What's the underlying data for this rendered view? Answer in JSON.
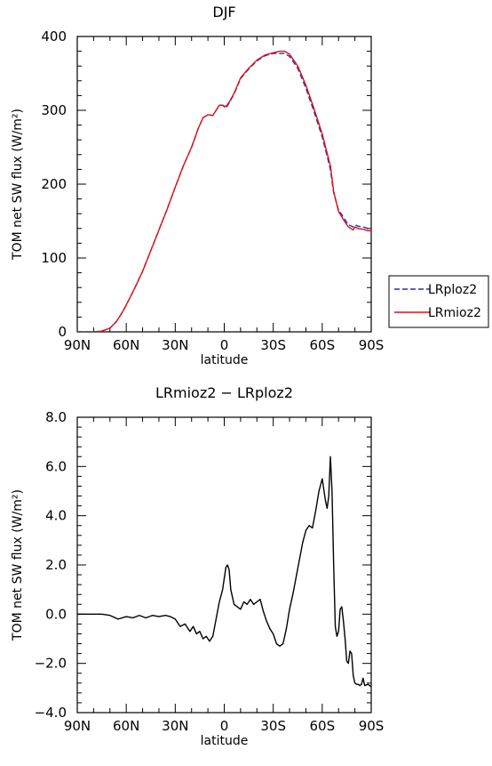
{
  "chart_data": [
    {
      "type": "line",
      "title": "DJF",
      "xlabel": "latitude",
      "ylabel": "TOM net SW flux (W/m²)",
      "x_ticks": [
        "90N",
        "60N",
        "30N",
        "0",
        "30S",
        "60S",
        "90S"
      ],
      "x_tick_values": [
        -90,
        -60,
        -30,
        0,
        30,
        60,
        90
      ],
      "y_ticks": [
        "0",
        "100",
        "200",
        "300",
        "400"
      ],
      "xlim": [
        -90,
        90
      ],
      "ylim": [
        0,
        400
      ],
      "legend_position": "right",
      "series": [
        {
          "name": "LRploz2",
          "color": "#1f2fbf",
          "dash": "dashed",
          "x": [
            -90,
            -80,
            -75,
            -70,
            -66,
            -62,
            -58,
            -54,
            -50,
            -45,
            -40,
            -35,
            -30,
            -25,
            -20,
            -16,
            -13,
            -10,
            -7,
            -5,
            -3,
            -1,
            1,
            3,
            6,
            10,
            15,
            20,
            25,
            30,
            34,
            37,
            40,
            45,
            50,
            55,
            60,
            63,
            65,
            67,
            70,
            73,
            76,
            79,
            80,
            82,
            85,
            88,
            90
          ],
          "y": [
            0,
            0,
            1,
            5,
            14,
            28,
            45,
            63,
            82,
            110,
            138,
            166,
            196,
            225,
            250,
            275,
            290,
            294,
            293,
            300,
            307,
            307,
            303,
            310,
            322,
            343,
            356,
            367,
            374,
            377,
            377,
            377,
            373,
            357,
            330,
            298,
            264,
            238,
            220,
            188,
            165,
            155,
            145,
            142,
            145,
            143,
            142,
            140,
            140
          ]
        },
        {
          "name": "LRmioz2",
          "color": "#e01010",
          "dash": "solid",
          "x": [
            -90,
            -80,
            -75,
            -70,
            -66,
            -62,
            -58,
            -54,
            -50,
            -45,
            -40,
            -35,
            -30,
            -25,
            -20,
            -16,
            -13,
            -10,
            -7,
            -5,
            -3,
            -1,
            1,
            3,
            6,
            10,
            15,
            20,
            25,
            30,
            34,
            37,
            40,
            45,
            50,
            55,
            60,
            63,
            65,
            67,
            70,
            73,
            76,
            79,
            80,
            82,
            85,
            88,
            90
          ],
          "y": [
            0,
            0,
            1,
            5,
            14,
            28,
            45,
            63,
            82,
            110,
            138,
            166,
            196,
            225,
            250,
            275,
            290,
            294,
            293,
            300,
            307,
            307,
            305,
            311,
            323,
            344,
            357,
            368,
            375,
            378,
            380,
            380,
            376,
            360,
            334,
            302,
            268,
            242,
            225,
            190,
            163,
            152,
            142,
            138,
            142,
            140,
            139,
            137,
            137
          ]
        }
      ]
    },
    {
      "type": "line",
      "title": "LRmioz2 − LRploz2",
      "xlabel": "latitude",
      "ylabel": "TOM net SW flux (W/m²)",
      "x_ticks": [
        "90N",
        "60N",
        "30N",
        "0",
        "30S",
        "60S",
        "90S"
      ],
      "x_tick_values": [
        -90,
        -60,
        -30,
        0,
        30,
        60,
        90
      ],
      "y_ticks": [
        "−4.0",
        "−2.0",
        "0.0",
        "2.0",
        "4.0",
        "6.0",
        "8.0"
      ],
      "xlim": [
        -90,
        90
      ],
      "ylim": [
        -4,
        8
      ],
      "series": [
        {
          "name": "",
          "color": "#000000",
          "dash": "solid",
          "x": [
            -90,
            -75,
            -70,
            -65,
            -60,
            -56,
            -52,
            -48,
            -44,
            -40,
            -36,
            -33,
            -30,
            -27,
            -24,
            -21,
            -19,
            -17,
            -15,
            -13,
            -11,
            -9,
            -7,
            -5,
            -3,
            -1,
            1,
            2,
            3,
            4,
            6,
            8,
            10,
            12,
            14,
            16,
            18,
            20,
            22,
            24,
            26,
            28,
            30,
            32,
            34,
            36,
            38,
            40,
            42,
            44,
            46,
            48,
            50,
            52,
            54,
            56,
            58,
            60,
            62,
            63,
            64,
            65,
            66,
            67,
            68,
            69,
            70,
            71,
            72,
            73,
            74,
            75,
            76,
            77,
            78,
            79,
            80,
            81,
            82,
            83,
            84,
            85,
            86,
            88,
            90
          ],
          "y": [
            0,
            0,
            -0.05,
            -0.2,
            -0.1,
            -0.15,
            -0.05,
            -0.15,
            -0.05,
            -0.1,
            -0.05,
            -0.1,
            -0.2,
            -0.5,
            -0.4,
            -0.7,
            -0.5,
            -0.8,
            -0.7,
            -1.0,
            -0.9,
            -1.1,
            -0.9,
            -0.2,
            0.5,
            1.0,
            1.9,
            2.0,
            1.8,
            1.0,
            0.4,
            0.3,
            0.2,
            0.5,
            0.4,
            0.6,
            0.4,
            0.5,
            0.6,
            0.1,
            -0.3,
            -0.6,
            -0.8,
            -1.2,
            -1.3,
            -1.2,
            -0.6,
            0.2,
            0.8,
            1.5,
            2.2,
            2.9,
            3.4,
            3.6,
            3.5,
            4.2,
            5.0,
            5.5,
            4.6,
            4.3,
            4.8,
            6.4,
            5.0,
            2.0,
            -0.5,
            -0.9,
            -0.7,
            0.2,
            0.3,
            -0.3,
            -1.0,
            -1.9,
            -2.0,
            -1.5,
            -1.6,
            -2.5,
            -2.8,
            -2.85,
            -2.85,
            -2.9,
            -2.85,
            -2.6,
            -2.9,
            -2.85,
            -2.95
          ]
        }
      ]
    }
  ]
}
